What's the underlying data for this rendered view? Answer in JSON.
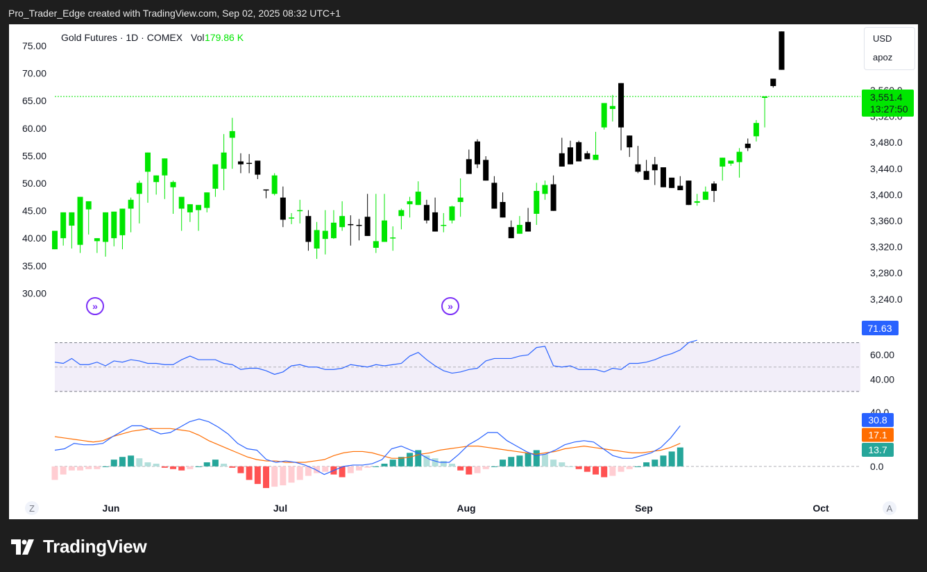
{
  "header": {
    "attribution": "Pro_Trader_Edge created with TradingView.com, Sep 02, 2025 08:32 UTC+1"
  },
  "legend": {
    "symbol": "Gold Futures · 1D · COMEX",
    "vol_label": "Vol",
    "vol_value": "179.86 K"
  },
  "scale_box": {
    "currency": "USD",
    "mode": "apoz"
  },
  "price_badge": {
    "price": "3,551.4",
    "countdown": "13:27:50",
    "color": "#00e600"
  },
  "rsi_badge": {
    "value": "71.63",
    "color": "#2962ff"
  },
  "macd_badges": [
    {
      "value": "30.8",
      "color": "#2962ff"
    },
    {
      "value": "17.1",
      "color": "#ff6d00"
    },
    {
      "value": "13.7",
      "color": "#26a69a"
    }
  ],
  "bottom_bar": {
    "left_button": "Z",
    "right_button": "A"
  },
  "brand": {
    "name": "TradingView"
  },
  "colors": {
    "up": "#00e600",
    "down": "#000000",
    "rsi_line": "#2962ff",
    "macd_line": "#2962ff",
    "signal_line": "#ff6d00",
    "hist_pos_strong": "#26a69a",
    "hist_pos_weak": "#b2dfdb",
    "hist_neg_strong": "#ff5252",
    "hist_neg_weak": "#ffcdd2",
    "rsi_band": "#7e57c2"
  },
  "chart_data": [
    {
      "type": "candlestick",
      "title": "Gold Futures · 1D · COMEX",
      "left_axis_ticks": [
        "75.00",
        "70.00",
        "65.00",
        "60.00",
        "55.00",
        "50.00",
        "45.00",
        "40.00",
        "35.00",
        "30.00"
      ],
      "right_axis_ticks": [
        "3,560.0",
        "3,520.0",
        "3,480.0",
        "3,440.0",
        "3,400.0",
        "3,360.0",
        "3,320.0",
        "3,280.0",
        "3,240.0"
      ],
      "x_labels": [
        "Jun",
        "Jul",
        "Aug",
        "Sep",
        "Oct"
      ],
      "ylim": [
        3218,
        3594
      ],
      "candles": [
        [
          3295,
          3320,
          3300,
          3314
        ],
        [
          3310,
          3345,
          3300,
          3335
        ],
        [
          3327,
          3345,
          3296,
          3320
        ],
        [
          3301,
          3366,
          3290,
          3347
        ],
        [
          3349,
          3360,
          3315,
          3338
        ],
        [
          3306,
          3310,
          3290,
          3300
        ],
        [
          3305,
          3345,
          3285,
          3310
        ],
        [
          3310,
          3346,
          3299,
          3312
        ],
        [
          3314,
          3350,
          3295,
          3343
        ],
        [
          3350,
          3362,
          3318,
          3365
        ],
        [
          3370,
          3385,
          3330,
          3388
        ],
        [
          3400,
          3426,
          3358,
          3377
        ],
        [
          3386,
          3395,
          3369,
          3378
        ],
        [
          3395,
          3418,
          3363,
          3398
        ],
        [
          3379,
          3386,
          3343,
          3388
        ],
        [
          3350,
          3366,
          3320,
          3345
        ],
        [
          3345,
          3356,
          3332,
          3355
        ],
        [
          3348,
          3355,
          3320,
          3351
        ],
        [
          3351,
          3372,
          3345,
          3368
        ],
        [
          3377,
          3410,
          3366,
          3382
        ],
        [
          3404,
          3426,
          3375,
          3451
        ],
        [
          3446,
          3455,
          3404,
          3473
        ],
        [
          3414,
          3410,
          3398,
          3425
        ],
        [
          3412,
          3411,
          3398,
          3424
        ],
        [
          3415,
          3396,
          3390,
          3410
        ],
        [
          3376,
          3375,
          3364,
          3372
        ],
        [
          3370,
          3395,
          3368,
          3398
        ],
        [
          3365,
          3335,
          3325,
          3380
        ],
        [
          3337,
          3338,
          3329,
          3344
        ],
        [
          3347,
          3348,
          3330,
          3362
        ],
        [
          3340,
          3305,
          3293,
          3348
        ],
        [
          3296,
          3321,
          3282,
          3332
        ],
        [
          3309,
          3320,
          3288,
          3348
        ],
        [
          3310,
          3331,
          3309,
          3348
        ],
        [
          3325,
          3340,
          3320,
          3360
        ],
        [
          3329,
          3328,
          3300,
          3341
        ],
        [
          3328,
          3327,
          3307,
          3336
        ],
        [
          3339,
          3313,
          3316,
          3370
        ],
        [
          3297,
          3306,
          3290,
          3370
        ],
        [
          3305,
          3334,
          3319,
          3370
        ],
        [
          3310,
          3311,
          3293,
          3326
        ],
        [
          3340,
          3348,
          3322,
          3350
        ],
        [
          3356,
          3360,
          3338,
          3366
        ],
        [
          3355,
          3373,
          3359,
          3387
        ],
        [
          3355,
          3334,
          3330,
          3362
        ],
        [
          3345,
          3319,
          3330,
          3365
        ],
        [
          3327,
          3328,
          3318,
          3344
        ],
        [
          3334,
          3353,
          3330,
          3354
        ],
        [
          3359,
          3365,
          3339,
          3391
        ],
        [
          3417,
          3397,
          3397,
          3430
        ],
        [
          3441,
          3410,
          3405,
          3444
        ],
        [
          3416,
          3388,
          3390,
          3421
        ],
        [
          3385,
          3350,
          3355,
          3394
        ],
        [
          3359,
          3338,
          3349,
          3372
        ],
        [
          3325,
          3310,
          3315,
          3334
        ],
        [
          3316,
          3328,
          3328,
          3340
        ],
        [
          3332,
          3319,
          3335,
          3351
        ],
        [
          3343,
          3374,
          3328,
          3385
        ],
        [
          3370,
          3382,
          3362,
          3388
        ],
        [
          3383,
          3347,
          3355,
          3395
        ],
        [
          3425,
          3407,
          3414,
          3446
        ],
        [
          3433,
          3410,
          3420,
          3442
        ],
        [
          3440,
          3414,
          3425,
          3442
        ],
        [
          3425,
          3417,
          3420,
          3428
        ],
        [
          3416,
          3423,
          3418,
          3454
        ],
        [
          3460,
          3493,
          3457,
          3465
        ],
        [
          3485,
          3489,
          3468,
          3504
        ],
        [
          3520,
          3460,
          3429,
          3446
        ],
        [
          3449,
          3433,
          3420,
          3422
        ],
        [
          3410,
          3400,
          3398,
          3435
        ],
        [
          3401,
          3389,
          3401,
          3416
        ],
        [
          3410,
          3402,
          3382,
          3420
        ],
        [
          3406,
          3379,
          3387,
          3395
        ],
        [
          3392,
          3378,
          3385,
          3390
        ],
        [
          3381,
          3375,
          3378,
          3394
        ],
        [
          3388,
          3355,
          3382,
          3372
        ],
        [
          3358,
          3360,
          3354,
          3370
        ],
        [
          3362,
          3373,
          3365,
          3380
        ],
        [
          3384,
          3374,
          3359,
          3387
        ],
        [
          3407,
          3419,
          3388,
          3397
        ],
        [
          3411,
          3415,
          3408,
          3412
        ],
        [
          3413,
          3427,
          3392,
          3432
        ],
        [
          3438,
          3432,
          3428,
          3445
        ],
        [
          3448,
          3466,
          3441,
          3470
        ],
        [
          3500,
          3502,
          3460,
          3477
        ],
        [
          3526,
          3516,
          3514,
          3526
        ],
        [
          3590,
          3538,
          3544,
          3559
        ]
      ]
    },
    {
      "type": "line",
      "title": "RSI",
      "y_ticks": [
        "60.00",
        "40.00"
      ],
      "band": [
        30,
        70
      ],
      "ylim": [
        22,
        80
      ],
      "values": [
        54,
        53,
        57,
        52,
        52,
        54,
        51,
        55,
        54,
        56,
        55,
        53,
        53,
        52,
        52,
        56,
        59,
        56,
        56,
        56,
        53,
        52,
        48,
        49,
        49,
        47,
        44,
        46,
        51,
        52,
        50,
        50,
        48,
        48,
        49,
        52,
        51,
        50,
        52,
        51,
        52,
        53,
        59,
        62,
        56,
        51,
        47,
        45,
        46,
        48,
        49,
        55,
        57,
        57,
        57,
        59,
        60,
        66,
        67,
        51,
        50,
        51,
        48,
        48,
        48,
        46,
        49,
        48,
        53,
        53,
        54,
        56,
        59,
        61,
        64,
        70,
        72
      ]
    },
    {
      "type": "line",
      "title": "MACD",
      "y_ticks": [
        "40.0",
        "0.0"
      ],
      "ylim": [
        -17,
        42
      ],
      "series": [
        {
          "values": [
            12,
            13,
            17,
            16,
            16,
            17,
            22,
            26,
            30,
            30,
            27,
            24,
            25,
            29,
            33,
            35,
            33,
            29,
            24,
            17,
            13,
            12,
            5,
            3,
            4,
            3,
            1,
            -2,
            -6,
            -3,
            0,
            1,
            1,
            2,
            5,
            13,
            15,
            12,
            9,
            5,
            3,
            3,
            9,
            16,
            20,
            25,
            25,
            19,
            15,
            11,
            8,
            9,
            12,
            16,
            18,
            19,
            18,
            13,
            8,
            6,
            6,
            8,
            10,
            14,
            21,
            30
          ]
        },
        {
          "values": [
            22,
            21,
            20,
            19,
            18,
            19,
            22,
            24,
            26,
            27,
            28,
            28,
            28,
            27,
            26,
            23,
            19,
            16,
            13,
            10,
            7,
            5,
            4,
            4,
            3,
            3,
            3,
            4,
            5,
            8,
            10,
            11,
            11,
            10,
            8,
            6,
            6,
            7,
            9,
            10,
            12,
            13,
            14,
            15,
            15,
            14,
            13,
            12,
            11,
            10,
            9,
            10,
            11,
            13,
            14,
            15,
            14,
            13,
            12,
            11,
            10,
            10,
            11,
            12,
            14,
            17
          ]
        },
        {
          "values": [
            -10,
            -6,
            -3,
            -3,
            -2,
            -2,
            0,
            5,
            7,
            8,
            6,
            3,
            2,
            -1,
            -2,
            -3,
            -2,
            0,
            3,
            5,
            2,
            -1,
            -5,
            -10,
            -13,
            -16,
            -15,
            -14,
            -12,
            -10,
            -7,
            -5,
            -4,
            -6,
            -8,
            -5,
            -3,
            -1,
            0,
            2,
            5,
            7,
            10,
            12,
            8,
            6,
            4,
            2,
            -3,
            -6,
            -5,
            -2,
            0,
            5,
            7,
            8,
            10,
            12,
            9,
            5,
            3,
            0,
            -2,
            -4,
            -6,
            -8,
            -7,
            -4,
            -2,
            0,
            3,
            5,
            8,
            11,
            14
          ]
        }
      ]
    }
  ]
}
